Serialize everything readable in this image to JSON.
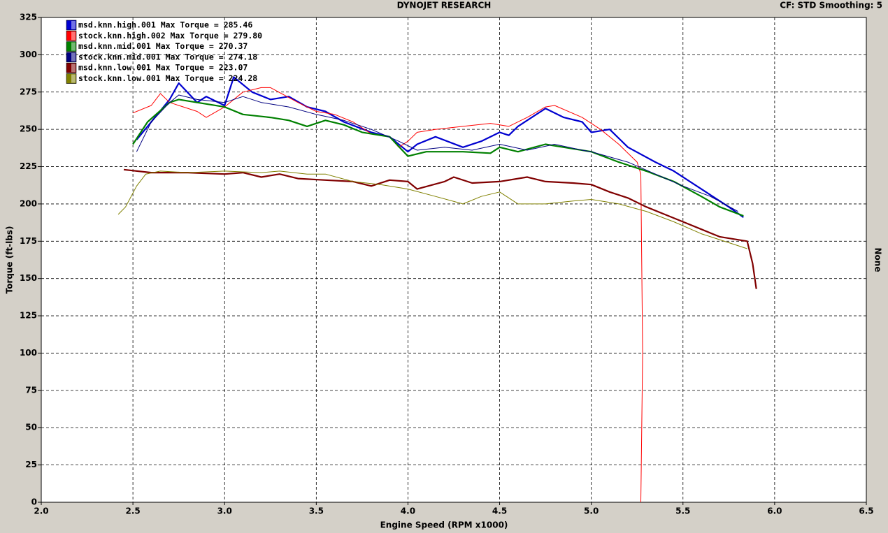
{
  "chart_data": {
    "type": "line",
    "title": "DYNOJET RESEARCH",
    "subtitle": "CF: STD  Smoothing: 5",
    "side_label": "None",
    "x_label": "Engine Speed (RPM x1000)",
    "y_label": "Torque (ft-lbs)",
    "xlim": [
      2.0,
      6.5
    ],
    "ylim": [
      0,
      325
    ],
    "xticks": [
      {
        "value": 2.0,
        "label": "2.0"
      },
      2.5,
      {
        "value": 3.0,
        "label": "3.0"
      },
      3.5,
      {
        "value": 4.0,
        "label": "4.0"
      },
      4.5,
      {
        "value": 5.0,
        "label": "5.0"
      },
      5.5,
      {
        "value": 6.0,
        "label": "6.0"
      },
      6.5
    ],
    "yticks": [
      0,
      25,
      50,
      75,
      100,
      125,
      150,
      175,
      200,
      225,
      250,
      275,
      300,
      325
    ],
    "grid": true,
    "legend": "top-left",
    "series": [
      {
        "name": "msd.knn.high.001 Max Torque = 285.46",
        "color": "#0000d0",
        "width": 2.2,
        "x": [
          2.52,
          2.58,
          2.7,
          2.75,
          2.85,
          2.9,
          3.0,
          3.05,
          3.15,
          3.25,
          3.35,
          3.45,
          3.55,
          3.65,
          3.8,
          3.9,
          4.0,
          4.05,
          4.15,
          4.3,
          4.4,
          4.5,
          4.55,
          4.6,
          4.75,
          4.85,
          4.95,
          5.0,
          5.1,
          5.2,
          5.35,
          5.45,
          5.6,
          5.75,
          5.83
        ],
        "values": [
          243,
          252,
          270,
          281,
          268,
          272,
          266,
          285,
          275,
          270,
          272,
          265,
          262,
          255,
          248,
          245,
          235,
          240,
          245,
          238,
          242,
          248,
          246,
          252,
          264,
          258,
          255,
          248,
          250,
          238,
          228,
          222,
          210,
          198,
          191
        ]
      },
      {
        "name": "stock.knn.high.002 Max Torque = 279.80",
        "color": "#ff0000",
        "width": 1,
        "x": [
          2.5,
          2.6,
          2.65,
          2.7,
          2.85,
          2.9,
          3.0,
          3.1,
          3.2,
          3.25,
          3.4,
          3.5,
          3.6,
          3.7,
          3.8,
          3.9,
          3.95,
          4.0,
          4.05,
          4.15,
          4.3,
          4.45,
          4.55,
          4.65,
          4.75,
          4.8,
          4.95,
          5.05,
          5.15,
          5.25,
          5.27,
          5.28,
          5.27
        ],
        "values": [
          261,
          266,
          274,
          268,
          262,
          258,
          265,
          275,
          278,
          278,
          268,
          262,
          260,
          255,
          247,
          245,
          238,
          242,
          248,
          250,
          252,
          254,
          252,
          258,
          265,
          266,
          258,
          250,
          240,
          228,
          220,
          100,
          0
        ]
      },
      {
        "name": "msd.knn.mid.001 Max Torque = 270.37",
        "color": "#008000",
        "width": 2.2,
        "x": [
          2.5,
          2.58,
          2.7,
          2.75,
          2.85,
          3.0,
          3.1,
          3.25,
          3.35,
          3.45,
          3.55,
          3.65,
          3.75,
          3.9,
          4.0,
          4.1,
          4.3,
          4.45,
          4.5,
          4.6,
          4.75,
          4.85,
          5.0,
          5.15,
          5.3,
          5.45,
          5.6,
          5.7,
          5.83
        ],
        "values": [
          240,
          255,
          268,
          270,
          268,
          265,
          260,
          258,
          256,
          252,
          256,
          253,
          248,
          245,
          232,
          235,
          235,
          234,
          238,
          235,
          240,
          238,
          235,
          228,
          222,
          215,
          205,
          198,
          192
        ]
      },
      {
        "name": "stock.knn.mid.001 Max Torque = 274.18",
        "color": "#000080",
        "width": 1,
        "x": [
          2.52,
          2.6,
          2.7,
          2.75,
          2.85,
          3.0,
          3.1,
          3.2,
          3.35,
          3.5,
          3.65,
          3.8,
          3.95,
          4.05,
          4.2,
          4.35,
          4.5,
          4.65,
          4.8,
          4.95,
          5.0,
          5.2,
          5.35,
          5.5,
          5.65,
          5.8
        ],
        "values": [
          235,
          255,
          268,
          273,
          270,
          268,
          272,
          268,
          265,
          260,
          256,
          250,
          242,
          236,
          238,
          236,
          240,
          236,
          240,
          236,
          235,
          228,
          220,
          212,
          205,
          195
        ]
      },
      {
        "name": "msd.knn.low.001 Max Torque = 223.07",
        "color": "#800000",
        "width": 2.2,
        "x": [
          2.45,
          2.6,
          2.8,
          3.0,
          3.1,
          3.2,
          3.3,
          3.4,
          3.55,
          3.7,
          3.8,
          3.9,
          4.0,
          4.05,
          4.2,
          4.25,
          4.35,
          4.5,
          4.65,
          4.75,
          4.9,
          5.0,
          5.1,
          5.2,
          5.3,
          5.4,
          5.5,
          5.6,
          5.7,
          5.85,
          5.88,
          5.9
        ],
        "values": [
          223,
          221,
          221,
          220,
          221,
          218,
          220,
          217,
          216,
          215,
          212,
          216,
          215,
          210,
          215,
          218,
          214,
          215,
          218,
          215,
          214,
          213,
          208,
          204,
          198,
          193,
          188,
          183,
          178,
          175,
          160,
          143
        ]
      },
      {
        "name": "stock.knn.low.001 Max Torque = 224.28",
        "color": "#808000",
        "width": 1,
        "x": [
          2.42,
          2.46,
          2.52,
          2.57,
          2.65,
          2.8,
          3.0,
          3.2,
          3.3,
          3.45,
          3.55,
          3.7,
          3.85,
          4.0,
          4.15,
          4.3,
          4.4,
          4.5,
          4.6,
          4.75,
          4.9,
          5.0,
          5.15,
          5.3,
          5.45,
          5.6,
          5.75,
          5.85
        ],
        "values": [
          193,
          198,
          212,
          220,
          222,
          221,
          222,
          221,
          222,
          220,
          220,
          215,
          213,
          210,
          205,
          200,
          205,
          208,
          200,
          200,
          202,
          203,
          200,
          195,
          188,
          180,
          174,
          170
        ]
      }
    ]
  }
}
